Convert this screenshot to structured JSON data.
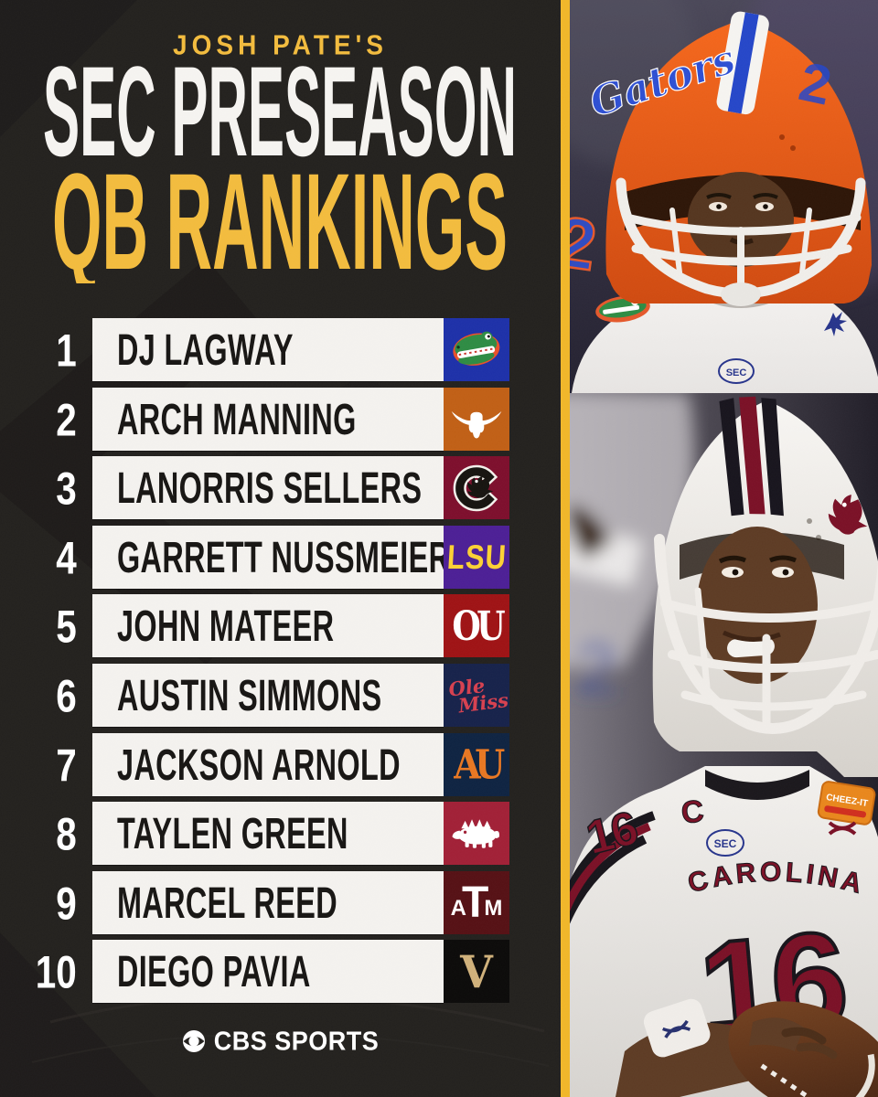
{
  "poster": {
    "kicker": "JOSH PATE'S",
    "title_line1": "SEC PRESEASON",
    "title_line2": "QB RANKINGS",
    "footer_brand": "CBS SPORTS"
  },
  "colors": {
    "background": "#23211E",
    "title_gold": "#F2BB3D",
    "divider_gold": "#F0B629",
    "bar_white": "#F3F1EE",
    "name_black": "#171513",
    "rank_white": "#FFFFFF"
  },
  "rankings": [
    {
      "rank": "1",
      "name": "DJ LAGWAY",
      "team": "Florida Gators",
      "logo": "florida-gators-logo",
      "tile_color": "#1D30A8"
    },
    {
      "rank": "2",
      "name": "ARCH MANNING",
      "team": "Texas Longhorns",
      "logo": "texas-longhorns-logo",
      "tile_color": "#C05F15"
    },
    {
      "rank": "3",
      "name": "LANORRIS SELLERS",
      "team": "South Carolina Gamecocks",
      "logo": "south-carolina-gamecocks-logo",
      "tile_color": "#7D0E2C"
    },
    {
      "rank": "4",
      "name": "GARRETT NUSSMEIER",
      "team": "LSU Tigers",
      "logo": "lsu-tigers-logo",
      "tile_color": "#4C1F95"
    },
    {
      "rank": "5",
      "name": "JOHN MATEER",
      "team": "Oklahoma Sooners",
      "logo": "oklahoma-sooners-logo",
      "tile_color": "#9E1214"
    },
    {
      "rank": "6",
      "name": "AUSTIN SIMMONS",
      "team": "Ole Miss Rebels",
      "logo": "ole-miss-rebels-logo",
      "tile_color": "#16224A"
    },
    {
      "rank": "7",
      "name": "JACKSON ARNOLD",
      "team": "Auburn Tigers",
      "logo": "auburn-tigers-logo",
      "tile_color": "#0E2341"
    },
    {
      "rank": "8",
      "name": "TAYLEN GREEN",
      "team": "Arkansas Razorbacks",
      "logo": "arkansas-razorbacks-logo",
      "tile_color": "#A12036"
    },
    {
      "rank": "9",
      "name": "MARCEL REED",
      "team": "Texas A&M Aggies",
      "logo": "texas-am-aggies-logo",
      "tile_color": "#551014"
    },
    {
      "rank": "10",
      "name": "DIEGO PAVIA",
      "team": "Vanderbilt Commodores",
      "logo": "vanderbilt-commodores-logo",
      "tile_color": "#0B0A09"
    }
  ],
  "logo_text": {
    "lsu": "LSU",
    "oklahoma": "OU",
    "ole_miss_line1": "Ole",
    "ole_miss_line2": "Miss",
    "auburn": "AU",
    "texas_am_a": "A",
    "texas_am_t": "T",
    "texas_am_m": "M",
    "vanderbilt": "V"
  },
  "photos": {
    "top": {
      "team": "Florida Gators",
      "helmet_script": "Gators",
      "jersey_number": "2",
      "patch": "SEC"
    },
    "bottom": {
      "team": "South Carolina Gamecocks",
      "jersey_number": "16",
      "jersey_wordmark": "CAROLINA",
      "captain_patch": "C",
      "patch": "SEC",
      "bowl_patch": "CHEEZ-IT"
    }
  }
}
